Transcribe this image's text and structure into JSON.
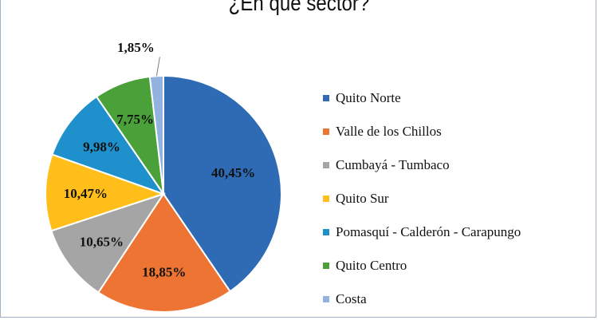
{
  "chart_data": {
    "type": "pie",
    "title": "¿En qué sector?",
    "slices": [
      {
        "label": "Quito Norte",
        "value": 40.45,
        "display": "40,45%",
        "color": "#2e6bb4"
      },
      {
        "label": "Valle de los Chillos",
        "value": 18.85,
        "display": "18,85%",
        "color": "#ee7433"
      },
      {
        "label": "Cumbayá - Tumbaco",
        "value": 10.65,
        "display": "10,65%",
        "color": "#a5a5a5"
      },
      {
        "label": "Quito Sur",
        "value": 10.47,
        "display": "10,47%",
        "color": "#ffbe1a"
      },
      {
        "label": "Pomasquí - Calderón - Carapungo",
        "value": 9.98,
        "display": "9,98%",
        "color": "#1e90cc"
      },
      {
        "label": "Quito Centro",
        "value": 7.75,
        "display": "7,75%",
        "color": "#4aa139"
      },
      {
        "label": "Costa",
        "value": 1.85,
        "display": "1,85%",
        "color": "#92b3df"
      }
    ],
    "legend_position": "right"
  }
}
